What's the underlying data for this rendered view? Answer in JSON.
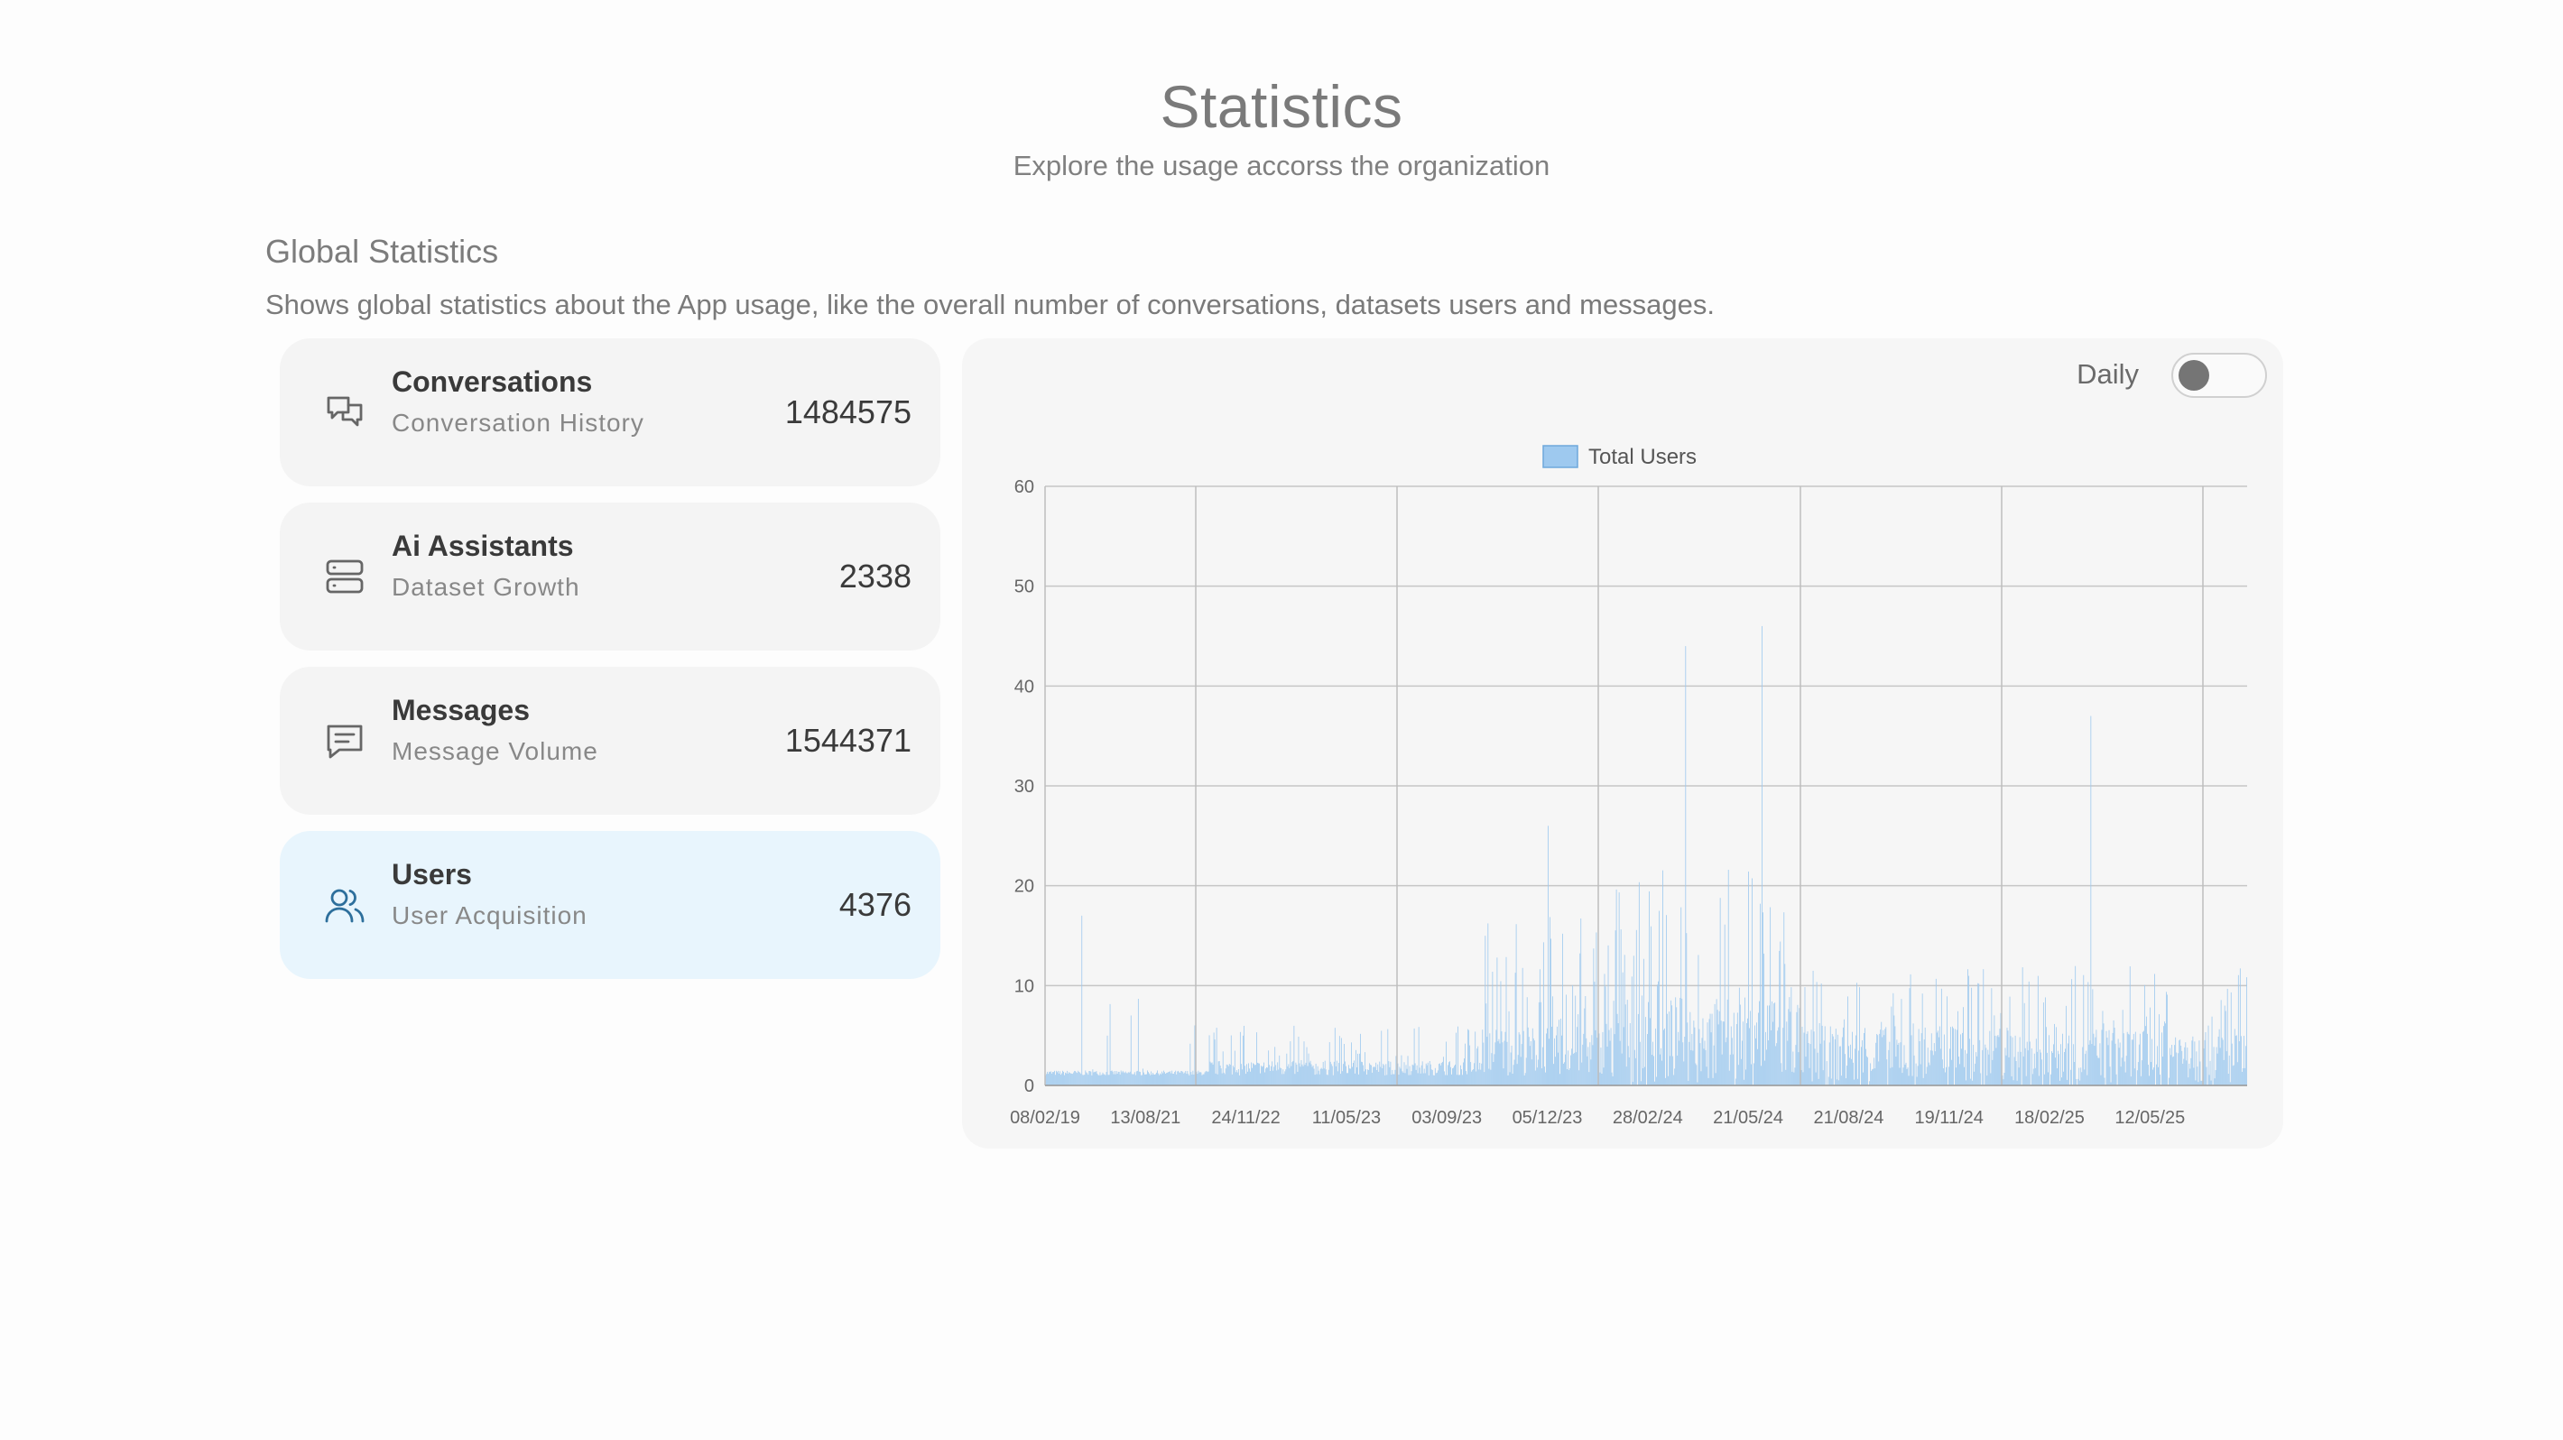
{
  "header": {
    "title": "Statistics",
    "subtitle": "Explore the usage accorss the organization"
  },
  "section": {
    "title": "Global Statistics",
    "description": "Shows global statistics about the App usage, like the overall number of conversations, datasets users and messages."
  },
  "cards": [
    {
      "name": "Conversations",
      "subtitle": "Conversation History",
      "value": "1484575",
      "icon": "conversations-icon"
    },
    {
      "name": "Ai Assistants",
      "subtitle": "Dataset Growth",
      "value": "2338",
      "icon": "server-icon"
    },
    {
      "name": "Messages",
      "subtitle": "Message Volume",
      "value": "1544371",
      "icon": "message-icon"
    },
    {
      "name": "Users",
      "subtitle": "User Acquisition",
      "value": "4376",
      "icon": "users-icon",
      "active": true
    }
  ],
  "toggle": {
    "label": "Daily",
    "checked": false
  },
  "colors": {
    "accent": "#2d6f9c",
    "bar": "#9ec9ef",
    "active_card": "#e8f5fd"
  },
  "chart_data": {
    "type": "bar",
    "legend": [
      "Total Users"
    ],
    "legend_position": "top",
    "grid": true,
    "ylim": [
      0,
      60
    ],
    "yticks": [
      0,
      10,
      20,
      30,
      40,
      50,
      60
    ],
    "x_tick_labels": [
      "08/02/19",
      "13/08/21",
      "24/11/22",
      "11/05/23",
      "03/09/23",
      "05/12/23",
      "28/02/24",
      "21/05/24",
      "21/08/24",
      "19/11/24",
      "18/02/25",
      "12/05/25"
    ],
    "peaks": [
      {
        "date": "13/08/21",
        "value": 17
      },
      {
        "date": "05/12/23",
        "value": 26
      },
      {
        "date": "28/02/24",
        "value": 44
      },
      {
        "date": "21/05/24",
        "value": 46
      },
      {
        "date": "18/02/25",
        "value": 37
      }
    ]
  }
}
